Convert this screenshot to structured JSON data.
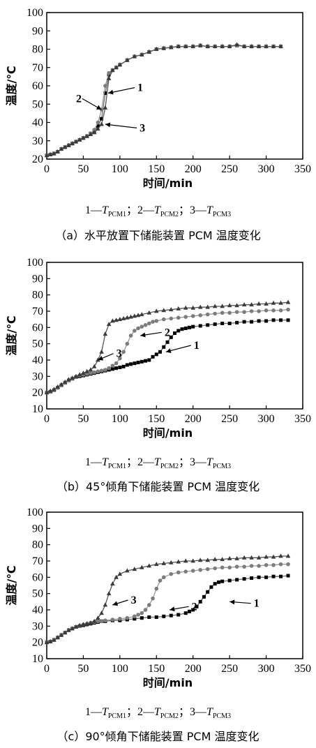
{
  "chart_data": [
    {
      "type": "line",
      "ylabel": "温度/℃",
      "xlabel": "时间/min",
      "xlim": [
        0,
        350
      ],
      "ylim": [
        20,
        100
      ],
      "xticks": [
        0,
        50,
        100,
        150,
        200,
        250,
        300,
        350
      ],
      "yticks": [
        20,
        30,
        40,
        50,
        60,
        70,
        80,
        90,
        100
      ],
      "grid": false,
      "legend": {
        "prefix_1": "1—",
        "name_1": "T",
        "sub_1": "PCM1",
        "sep_2": "；2—",
        "name_2": "T",
        "sub_2": "PCM2",
        "sep_3": "；3—",
        "name_3": "T",
        "sub_3": "PCM3"
      },
      "caption": "（a）水平放置下储能装置 PCM 温度变化",
      "annotations": [
        {
          "text": "1",
          "series": 0,
          "point": [
            84,
            56
          ],
          "label_at": [
            124,
            59
          ]
        },
        {
          "text": "2",
          "series": 1,
          "point": [
            75,
            47
          ],
          "label_at": [
            40,
            53
          ]
        },
        {
          "text": "3",
          "series": 2,
          "point": [
            80,
            39
          ],
          "label_at": [
            127,
            37
          ]
        }
      ],
      "series": [
        {
          "name": "T_PCM1",
          "marker": "square",
          "x": [
            0,
            5,
            10,
            15,
            20,
            25,
            30,
            35,
            40,
            45,
            50,
            55,
            60,
            65,
            70,
            75,
            80,
            85,
            90,
            95,
            100,
            110,
            120,
            130,
            140,
            150,
            160,
            170,
            180,
            190,
            200,
            210,
            220,
            230,
            240,
            250,
            260,
            270,
            280,
            290,
            300,
            310,
            320
          ],
          "y": [
            22,
            22.5,
            23,
            24,
            25.5,
            26.5,
            27.5,
            28.5,
            29.5,
            30.5,
            31.5,
            32.5,
            34,
            35,
            38,
            42,
            56,
            66,
            68.5,
            70,
            71.5,
            74,
            76,
            77,
            78.5,
            80,
            80.5,
            81,
            81.5,
            81.5,
            81.5,
            82,
            81.5,
            81.5,
            81.5,
            81.5,
            82,
            81.5,
            81.5,
            81.5,
            81.5,
            81.5,
            81.5
          ]
        },
        {
          "name": "T_PCM2",
          "marker": "circle",
          "x": [
            0,
            5,
            10,
            15,
            20,
            25,
            30,
            35,
            40,
            45,
            50,
            55,
            60,
            65,
            70,
            75,
            80,
            85,
            90,
            95,
            100,
            110,
            120,
            130,
            140,
            150,
            160,
            170,
            180,
            190,
            200,
            210,
            220,
            230,
            240,
            250,
            260,
            270,
            280,
            290,
            300,
            310,
            320
          ],
          "y": [
            22,
            22.5,
            23,
            24,
            25.5,
            26.5,
            27.5,
            28.5,
            29.5,
            30.5,
            31.5,
            32.5,
            34,
            36,
            40,
            47,
            60,
            67,
            68.5,
            70,
            71.5,
            74,
            76,
            77,
            78.5,
            80,
            80.5,
            81,
            81.5,
            81.5,
            81.5,
            82,
            81.5,
            81.5,
            81.5,
            81.5,
            82,
            81.5,
            81.5,
            81.5,
            81.5,
            81.5,
            81.5
          ]
        },
        {
          "name": "T_PCM3",
          "marker": "triangle",
          "x": [
            0,
            5,
            10,
            15,
            20,
            25,
            30,
            35,
            40,
            45,
            50,
            55,
            60,
            65,
            70,
            75,
            80,
            85,
            90,
            95,
            100,
            110,
            120,
            130,
            140,
            150,
            160,
            170,
            180,
            190,
            200,
            210,
            220,
            230,
            240,
            250,
            260,
            270,
            280,
            290,
            300,
            310,
            320
          ],
          "y": [
            22,
            22.5,
            23,
            24,
            25.5,
            26.5,
            27.5,
            28.5,
            29.5,
            30.5,
            31.5,
            32.5,
            33.5,
            34.5,
            36.5,
            39,
            48,
            64,
            68.5,
            70,
            71.5,
            74,
            76,
            77,
            78.5,
            80,
            80.5,
            81,
            81.5,
            81.5,
            81.5,
            82,
            81.5,
            81.5,
            81.5,
            81.5,
            82.5,
            81.5,
            81.5,
            81.5,
            81.5,
            81.5,
            81.5
          ]
        }
      ]
    },
    {
      "type": "line",
      "ylabel": "温度/℃",
      "xlabel": "时间/min",
      "xlim": [
        0,
        350
      ],
      "ylim": [
        10,
        100
      ],
      "xticks": [
        0,
        50,
        100,
        150,
        200,
        250,
        300,
        350
      ],
      "yticks": [
        10,
        20,
        30,
        40,
        50,
        60,
        70,
        80,
        90,
        100
      ],
      "grid": false,
      "legend": {
        "prefix_1": "1—",
        "name_1": "T",
        "sub_1": "PCM1",
        "sep_2": "；2—",
        "name_2": "T",
        "sub_2": "PCM2",
        "sep_3": "；3—",
        "name_3": "T",
        "sub_3": "PCM3"
      },
      "caption": "（b）45°倾角下储能装置 PCM 温度变化",
      "annotations": [
        {
          "text": "1",
          "series": 0,
          "point": [
            163,
            45
          ],
          "label_at": [
            201,
            49
          ]
        },
        {
          "text": "2",
          "series": 1,
          "point": [
            128,
            55
          ],
          "label_at": [
            161,
            57
          ]
        },
        {
          "text": "3",
          "series": 2,
          "point": [
            70,
            40
          ],
          "label_at": [
            95,
            44
          ]
        }
      ],
      "series": [
        {
          "name": "T_PCM1",
          "marker": "square",
          "x": [
            0,
            5,
            10,
            15,
            20,
            25,
            30,
            35,
            40,
            45,
            50,
            55,
            60,
            65,
            70,
            75,
            80,
            85,
            90,
            95,
            100,
            105,
            110,
            115,
            120,
            125,
            130,
            135,
            140,
            145,
            150,
            155,
            160,
            165,
            170,
            175,
            180,
            185,
            190,
            195,
            200,
            210,
            220,
            230,
            240,
            250,
            260,
            270,
            280,
            290,
            300,
            310,
            320,
            330
          ],
          "y": [
            20,
            20.5,
            21.5,
            23,
            24.5,
            26,
            27.5,
            28.5,
            29.5,
            30,
            30.5,
            31,
            31.5,
            32,
            32.5,
            33,
            33.5,
            34,
            34.5,
            35,
            35.5,
            36,
            37,
            37.5,
            38,
            38.5,
            39,
            39.5,
            40,
            42,
            43.5,
            45,
            48,
            51,
            54,
            56.5,
            58,
            59,
            59.5,
            60,
            60.5,
            61,
            61.5,
            62,
            62.5,
            62.5,
            63,
            63.5,
            63.5,
            64,
            64,
            64.5,
            64.5,
            64.5
          ]
        },
        {
          "name": "T_PCM2",
          "marker": "circle",
          "x": [
            0,
            5,
            10,
            15,
            20,
            25,
            30,
            35,
            40,
            45,
            50,
            55,
            60,
            65,
            70,
            75,
            80,
            85,
            90,
            95,
            100,
            105,
            110,
            115,
            120,
            125,
            130,
            135,
            140,
            145,
            150,
            160,
            170,
            180,
            190,
            200,
            210,
            220,
            230,
            240,
            250,
            260,
            270,
            280,
            290,
            300,
            310,
            320,
            330
          ],
          "y": [
            20,
            20.5,
            21.5,
            23,
            24.5,
            26,
            27.5,
            28.5,
            29.5,
            30.5,
            31,
            31.5,
            32,
            32.5,
            33,
            33.5,
            34,
            35,
            36.5,
            38,
            41,
            45,
            50,
            55,
            58,
            59.5,
            60.5,
            61.5,
            62.5,
            63.5,
            64,
            65,
            65.5,
            66,
            66.5,
            67,
            67.5,
            68,
            68.5,
            69,
            69,
            69.5,
            69.5,
            70,
            70,
            70.5,
            70.5,
            70.5,
            71
          ]
        },
        {
          "name": "T_PCM3",
          "marker": "triangle",
          "x": [
            0,
            5,
            10,
            15,
            20,
            25,
            30,
            35,
            40,
            45,
            50,
            55,
            60,
            65,
            70,
            75,
            80,
            85,
            90,
            95,
            100,
            105,
            110,
            115,
            120,
            125,
            130,
            140,
            150,
            160,
            170,
            180,
            190,
            200,
            210,
            220,
            230,
            240,
            250,
            260,
            270,
            280,
            290,
            300,
            310,
            320,
            330
          ],
          "y": [
            20,
            21,
            22,
            23.5,
            25,
            26.5,
            28,
            29,
            30,
            31,
            32,
            33,
            34,
            36,
            40,
            45,
            56,
            62,
            64,
            64.5,
            65,
            65.5,
            66,
            66.5,
            67,
            67.5,
            68,
            69,
            70,
            70.5,
            71,
            71.5,
            72,
            72,
            72.5,
            72.5,
            73,
            73,
            73.5,
            73.5,
            74,
            74,
            74.5,
            74.5,
            75,
            75,
            75.5
          ]
        }
      ]
    },
    {
      "type": "line",
      "ylabel": "温度/℃",
      "xlabel": "时间/min",
      "xlim": [
        0,
        350
      ],
      "ylim": [
        10,
        100
      ],
      "xticks": [
        0,
        50,
        100,
        150,
        200,
        250,
        300,
        350
      ],
      "yticks": [
        10,
        20,
        30,
        40,
        50,
        60,
        70,
        80,
        90,
        100
      ],
      "grid": false,
      "legend": {
        "prefix_1": "1—",
        "name_1": "T",
        "sub_1": "PCM1",
        "sep_2": "；2—",
        "name_2": "T",
        "sub_2": "PCM2",
        "sep_3": "；3—",
        "name_3": "T",
        "sub_3": "PCM3"
      },
      "caption": "（c）90°倾角下储能装置 PCM 温度变化",
      "annotations": [
        {
          "text": "1",
          "series": 0,
          "point": [
            250,
            45
          ],
          "label_at": [
            283,
            44
          ]
        },
        {
          "text": "2",
          "series": 1,
          "point": [
            168,
            40
          ],
          "label_at": [
            198,
            42
          ]
        },
        {
          "text": "3",
          "series": 2,
          "point": [
            90,
            43
          ],
          "label_at": [
            115,
            46
          ]
        }
      ],
      "series": [
        {
          "name": "T_PCM1",
          "marker": "square",
          "x": [
            0,
            5,
            10,
            15,
            20,
            25,
            30,
            35,
            40,
            45,
            50,
            55,
            60,
            65,
            70,
            75,
            80,
            90,
            100,
            110,
            120,
            130,
            140,
            150,
            160,
            170,
            180,
            190,
            195,
            200,
            205,
            210,
            215,
            220,
            225,
            230,
            235,
            240,
            250,
            260,
            270,
            280,
            290,
            300,
            310,
            320,
            330
          ],
          "y": [
            20,
            20.5,
            21.5,
            23,
            24.5,
            26,
            27.5,
            28.5,
            29.5,
            30,
            30.5,
            31,
            31.5,
            32,
            32.5,
            33,
            33,
            33.5,
            33.5,
            34,
            34.5,
            35,
            35.5,
            35.5,
            36,
            36.5,
            37,
            38,
            39,
            40,
            42,
            45,
            48,
            51,
            54,
            56,
            57,
            57.5,
            58,
            58.5,
            59,
            59.5,
            60,
            60,
            60.5,
            60.5,
            61
          ]
        },
        {
          "name": "T_PCM2",
          "marker": "circle",
          "x": [
            0,
            5,
            10,
            15,
            20,
            25,
            30,
            35,
            40,
            45,
            50,
            55,
            60,
            65,
            70,
            75,
            80,
            90,
            100,
            110,
            120,
            125,
            130,
            135,
            140,
            145,
            150,
            155,
            160,
            170,
            180,
            190,
            200,
            210,
            220,
            230,
            240,
            250,
            260,
            270,
            280,
            290,
            300,
            310,
            320,
            330
          ],
          "y": [
            20,
            20.5,
            21.5,
            23,
            24.5,
            26,
            27.5,
            28.5,
            29.5,
            30,
            31,
            31.5,
            32,
            32.5,
            33,
            33,
            33.5,
            34,
            34.5,
            35,
            36,
            37,
            38,
            40,
            43,
            47,
            53,
            58,
            60,
            62,
            63,
            63.5,
            64,
            64.5,
            65,
            65.5,
            66,
            66,
            66.5,
            66.5,
            67,
            67,
            67.5,
            67.5,
            68,
            68
          ]
        },
        {
          "name": "T_PCM3",
          "marker": "triangle",
          "x": [
            0,
            5,
            10,
            15,
            20,
            25,
            30,
            35,
            40,
            45,
            50,
            55,
            60,
            65,
            70,
            75,
            80,
            85,
            90,
            95,
            100,
            110,
            120,
            130,
            140,
            150,
            160,
            170,
            180,
            190,
            200,
            210,
            220,
            230,
            240,
            250,
            260,
            270,
            280,
            290,
            300,
            310,
            320,
            330
          ],
          "y": [
            20,
            20.5,
            21.5,
            23,
            24.5,
            26,
            27.5,
            28.5,
            29.5,
            30.5,
            31,
            31.5,
            32,
            33,
            35,
            38,
            43,
            50,
            56,
            60,
            62,
            64,
            65,
            66,
            67,
            68,
            68.5,
            69,
            69.5,
            70,
            70,
            70.5,
            70.5,
            71,
            71,
            71.5,
            71.5,
            72,
            72,
            72,
            72.5,
            72.5,
            73,
            73
          ]
        }
      ]
    }
  ]
}
